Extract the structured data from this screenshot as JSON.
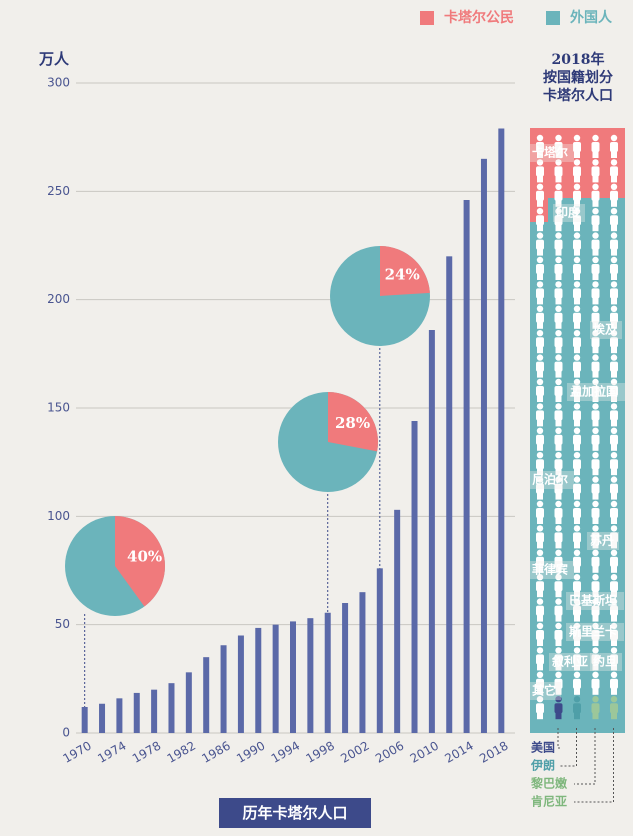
{
  "chart_data": {
    "type": "bar",
    "title": "历年卡塔尔人口",
    "y_label": "万人",
    "categories": [
      "1970",
      null,
      "1974",
      null,
      "1978",
      null,
      "1982",
      null,
      "1986",
      null,
      "1990",
      null,
      "1994",
      null,
      "1998",
      null,
      "2002",
      null,
      "2006",
      null,
      "2010",
      null,
      "2014",
      null,
      "2018"
    ],
    "values": [
      12,
      13.5,
      16,
      18.5,
      20,
      23,
      28,
      35,
      40.5,
      45,
      48.5,
      50,
      51.5,
      53,
      55.5,
      60,
      65,
      76,
      103,
      144,
      186,
      220,
      246,
      265,
      279
    ],
    "color": "#5b69a8",
    "ylim": [
      0,
      300
    ],
    "yticks": [
      0,
      50,
      100,
      150,
      200,
      250,
      300
    ],
    "grid": true,
    "legend": {
      "position": "top-right",
      "items": [
        {
          "name": "卡塔尔公民",
          "color": "#f07a7c"
        },
        {
          "name": "外国人",
          "color": "#6bb4bb"
        }
      ]
    },
    "pies": {
      "values": [
        40,
        28,
        24
      ],
      "value_labels": [
        "40%",
        "28%",
        "24%"
      ]
    },
    "pictogram": {
      "title": [
        "2018年",
        "按国籍划分",
        "卡塔尔人口"
      ],
      "labels": [
        "卡塔尔",
        "印度",
        "埃及",
        "孟加拉国",
        "尼泊尔",
        "苏丹",
        "菲律宾",
        "巴基斯坦",
        "斯里兰卡",
        "叙利亚",
        "约旦",
        "其它"
      ],
      "bottom_labels": [
        "美国",
        "伊朗",
        "黎巴嫩",
        "肯尼亚"
      ]
    }
  }
}
